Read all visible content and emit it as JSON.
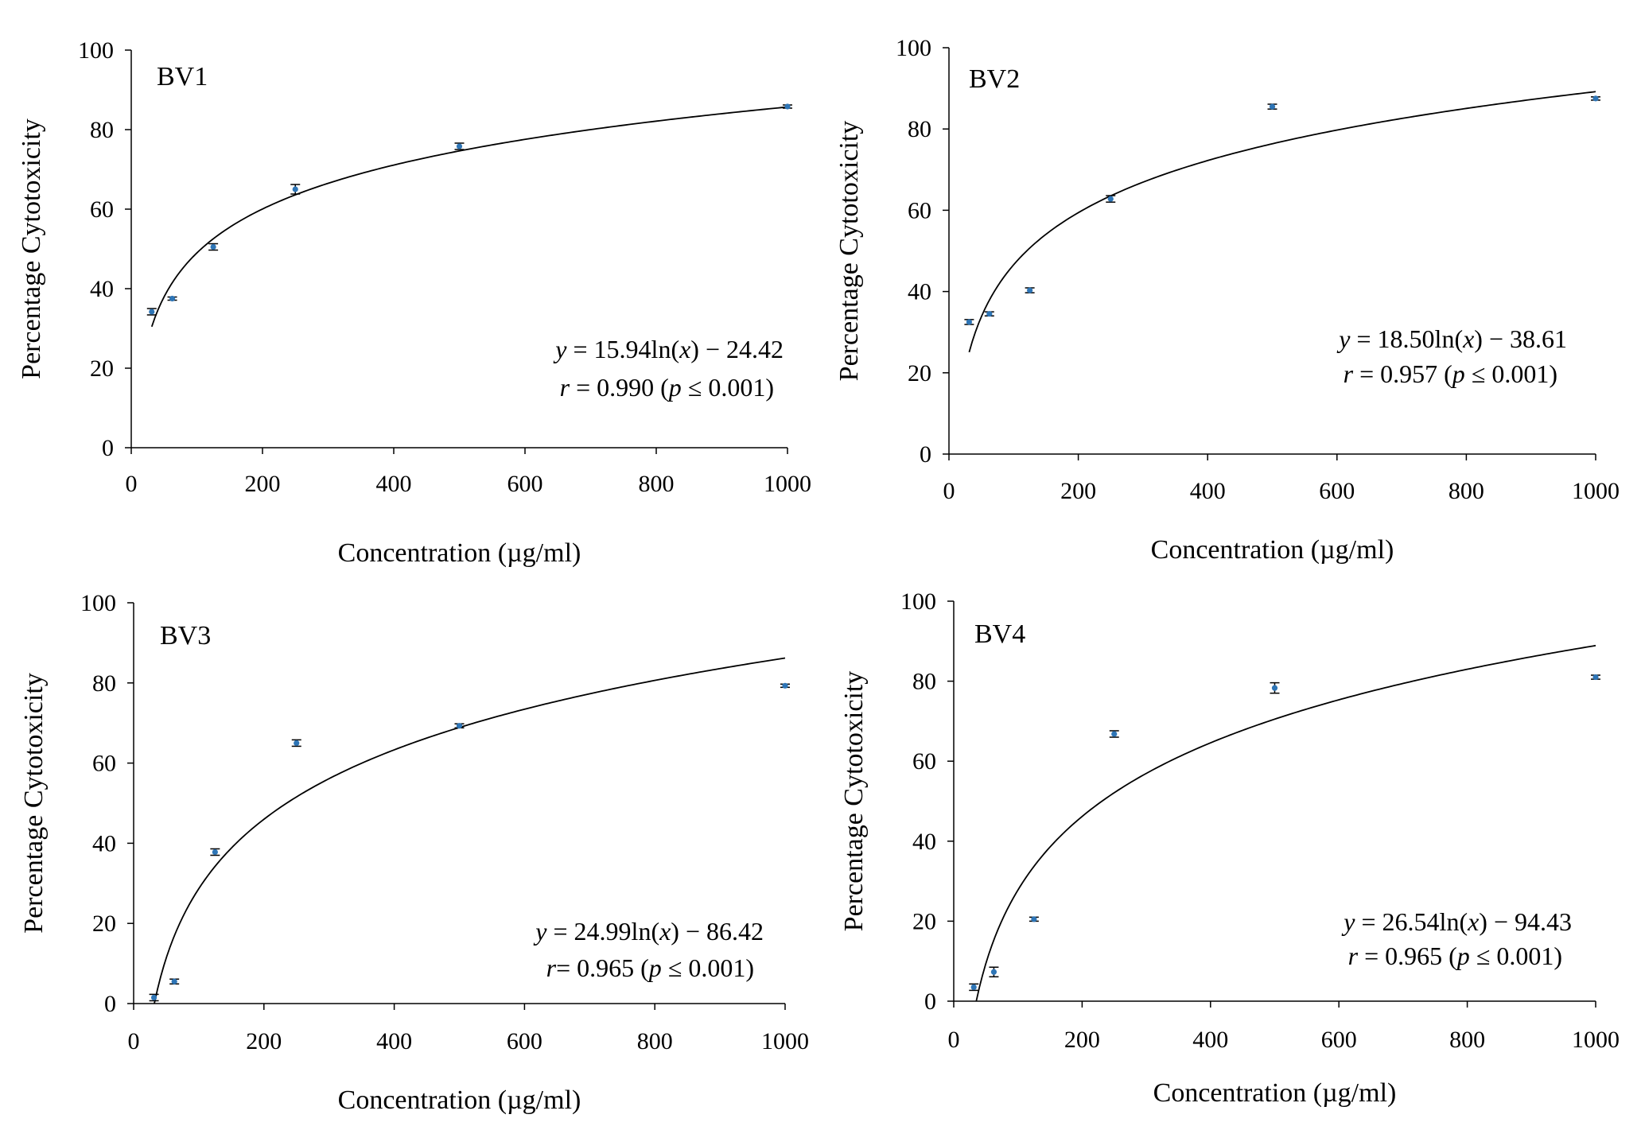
{
  "colors": {
    "marker": "#2e75b6",
    "fit_line": "#000000",
    "axis": "#000000"
  },
  "chart_data": [
    {
      "type": "scatter",
      "panel_label": "BV1",
      "xlabel": "Concentration  (µg/ml)",
      "ylabel": "Percentage  Cytotoxicity",
      "xlim": [
        0,
        1000
      ],
      "ylim": [
        0,
        100
      ],
      "xticks": [
        "0",
        "200",
        "400",
        "600",
        "800",
        "1000"
      ],
      "yticks": [
        "0",
        "20",
        "40",
        "60",
        "80",
        "100"
      ],
      "x": [
        31.25,
        62.5,
        125,
        250,
        500,
        1000
      ],
      "y": [
        34.2,
        37.5,
        50.5,
        65.0,
        75.8,
        85.8
      ],
      "err": [
        0.8,
        0.4,
        0.8,
        1.2,
        0.8,
        0.4
      ],
      "fit": {
        "a": 15.94,
        "b": -24.42
      },
      "equation": {
        "lhs": "y",
        "rhs": " = 15.94ln(",
        "var": "x",
        "tail": ")  −  24.42"
      },
      "stat": {
        "r": "r",
        "r_text": " = 0.990  (",
        "p": "p",
        "p_text": " ≤ 0.001)"
      }
    },
    {
      "type": "scatter",
      "panel_label": "BV2",
      "xlabel": "Concentration  (µg/ml)",
      "ylabel": "Percentage  Cytotoxicity",
      "xlim": [
        0,
        1000
      ],
      "ylim": [
        0,
        100
      ],
      "xticks": [
        "0",
        "200",
        "400",
        "600",
        "800",
        "1000"
      ],
      "yticks": [
        "0",
        "20",
        "40",
        "60",
        "80",
        "100"
      ],
      "x": [
        31.25,
        62.5,
        125,
        250,
        500,
        1000
      ],
      "y": [
        32.5,
        34.5,
        40.3,
        62.8,
        85.5,
        87.5
      ],
      "err": [
        0.6,
        0.5,
        0.6,
        0.8,
        0.6,
        0.4
      ],
      "fit": {
        "a": 18.5,
        "b": -38.61
      },
      "equation": {
        "lhs": "y",
        "rhs": " = 18.50ln(",
        "var": "x",
        "tail": ")  −  38.61"
      },
      "stat": {
        "r": "r",
        "r_text": " = 0.957  (",
        "p": "p",
        "p_text": " ≤ 0.001)"
      }
    },
    {
      "type": "scatter",
      "panel_label": "BV3",
      "xlabel": "Concentration  (µg/ml)",
      "ylabel": "Percentage  Cytotoxicity",
      "xlim": [
        0,
        1000
      ],
      "ylim": [
        0,
        100
      ],
      "xticks": [
        "0",
        "200",
        "400",
        "600",
        "800",
        "1000"
      ],
      "yticks": [
        "0",
        "20",
        "40",
        "60",
        "80",
        "100"
      ],
      "x": [
        31.25,
        62.5,
        125,
        250,
        500,
        1000
      ],
      "y": [
        1.5,
        5.5,
        37.8,
        65.0,
        69.3,
        79.3
      ],
      "err": [
        0.8,
        0.6,
        0.8,
        0.8,
        0.5,
        0.4
      ],
      "fit": {
        "a": 24.99,
        "b": -86.42
      },
      "equation": {
        "lhs": "y",
        "rhs": " = 24.99ln(",
        "var": "x",
        "tail": ")  −  86.42"
      },
      "stat": {
        "r": "r",
        "r_text": "= 0.965  (",
        "p": "p",
        "p_text": " ≤ 0.001)"
      }
    },
    {
      "type": "scatter",
      "panel_label": "BV4",
      "xlabel": "Concentration  (µg/ml)",
      "ylabel": "Percentage  Cytotoxicity",
      "xlim": [
        0,
        1000
      ],
      "ylim": [
        0,
        100
      ],
      "xticks": [
        "0",
        "200",
        "400",
        "600",
        "800",
        "1000"
      ],
      "yticks": [
        "0",
        "20",
        "40",
        "60",
        "80",
        "100"
      ],
      "x": [
        31.25,
        62.5,
        125,
        250,
        500,
        1000
      ],
      "y": [
        3.5,
        7.3,
        20.5,
        66.8,
        78.3,
        81.0
      ],
      "err": [
        0.8,
        1.2,
        0.5,
        0.8,
        1.3,
        0.5
      ],
      "fit": {
        "a": 26.54,
        "b": -94.43
      },
      "equation": {
        "lhs": "y",
        "rhs": " = 26.54ln(",
        "var": "x",
        "tail": ")  −  94.43"
      },
      "stat": {
        "r": "r",
        "r_text": " = 0.965  (",
        "p": "p",
        "p_text": " ≤ 0.001)"
      }
    }
  ]
}
